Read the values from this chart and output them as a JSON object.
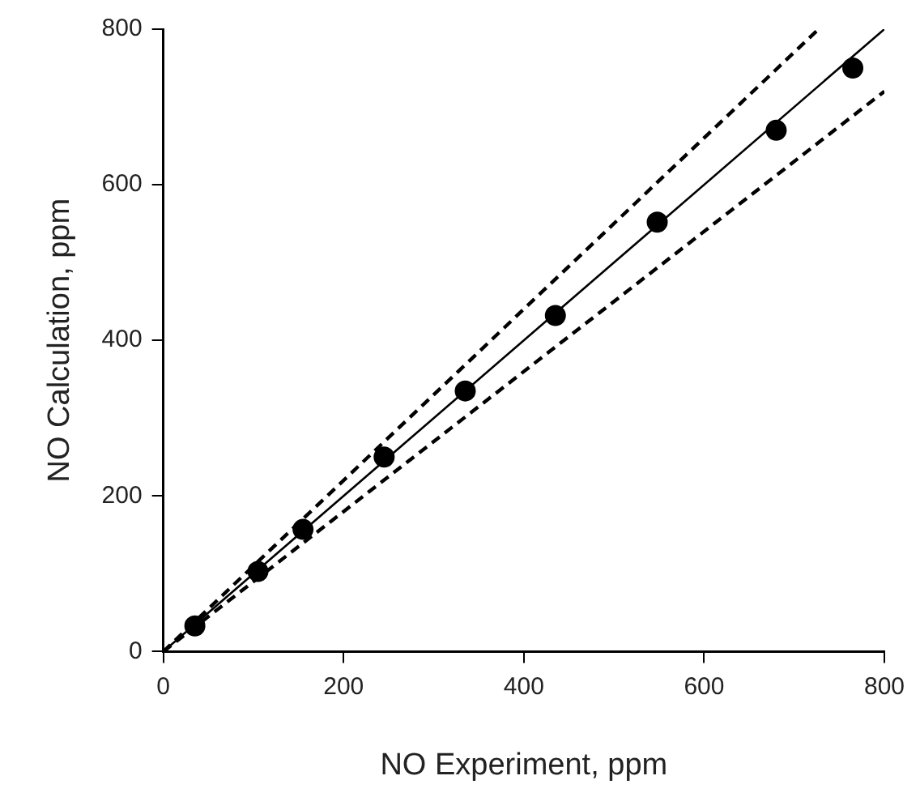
{
  "chart_data": {
    "type": "scatter",
    "xlabel": "NO Experiment, ppm",
    "ylabel": "NO Calculation, ppm",
    "xlim": [
      0,
      800
    ],
    "ylim": [
      0,
      800
    ],
    "xticks": [
      0,
      200,
      400,
      600,
      800
    ],
    "yticks": [
      0,
      200,
      400,
      600,
      800
    ],
    "legend": false,
    "series": [
      {
        "type": "scatter",
        "color": "#000000",
        "marker": "circle",
        "x": [
          35,
          105,
          155,
          245,
          335,
          435,
          548,
          680,
          765
        ],
        "values": [
          33,
          103,
          157,
          250,
          335,
          432,
          552,
          670,
          750
        ]
      },
      {
        "type": "line",
        "color": "#000000",
        "marker": "none",
        "line_style": "solid",
        "x": [
          0,
          800
        ],
        "values": [
          0,
          800
        ]
      },
      {
        "type": "line",
        "color": "#000000",
        "marker": "none",
        "line_style": "dashed",
        "x": [
          0,
          727
        ],
        "values": [
          0,
          800
        ]
      },
      {
        "type": "line",
        "color": "#000000",
        "marker": "none",
        "line_style": "dashed",
        "x": [
          0,
          800
        ],
        "values": [
          0,
          720
        ]
      }
    ]
  }
}
